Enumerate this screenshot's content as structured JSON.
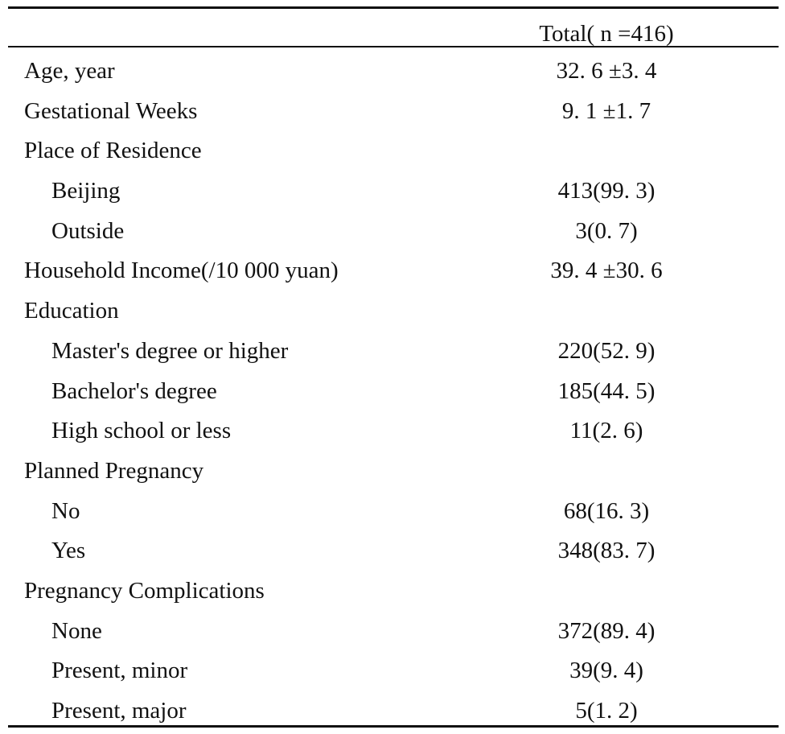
{
  "table": {
    "header": {
      "label": "",
      "total": "Total( n =416)"
    },
    "rows": [
      {
        "label": "Age, year",
        "value": "32. 6 ±3. 4",
        "indent": false
      },
      {
        "label": "Gestational Weeks",
        "value": "9. 1 ±1. 7",
        "indent": false
      },
      {
        "label": "Place of Residence",
        "value": "",
        "indent": false
      },
      {
        "label": "Beijing",
        "value": "413(99. 3)",
        "indent": true
      },
      {
        "label": "Outside",
        "value": "3(0. 7)",
        "indent": true
      },
      {
        "label": "Household Income(/10 000 yuan)",
        "value": "39. 4 ±30. 6",
        "indent": false
      },
      {
        "label": "Education",
        "value": "",
        "indent": false
      },
      {
        "label": "Master's degree or higher",
        "value": "220(52. 9)",
        "indent": true
      },
      {
        "label": "Bachelor's degree",
        "value": "185(44. 5)",
        "indent": true
      },
      {
        "label": "High school or less",
        "value": "11(2. 6)",
        "indent": true
      },
      {
        "label": "Planned Pregnancy",
        "value": "",
        "indent": false
      },
      {
        "label": "No",
        "value": "68(16. 3)",
        "indent": true
      },
      {
        "label": "Yes",
        "value": "348(83. 7)",
        "indent": true
      },
      {
        "label": "Pregnancy Complications",
        "value": "",
        "indent": false
      },
      {
        "label": "None",
        "value": "372(89. 4)",
        "indent": true
      },
      {
        "label": "Present, minor",
        "value": "39(9. 4)",
        "indent": true
      },
      {
        "label": "Present, major",
        "value": "5(1. 2)",
        "indent": true
      }
    ]
  }
}
